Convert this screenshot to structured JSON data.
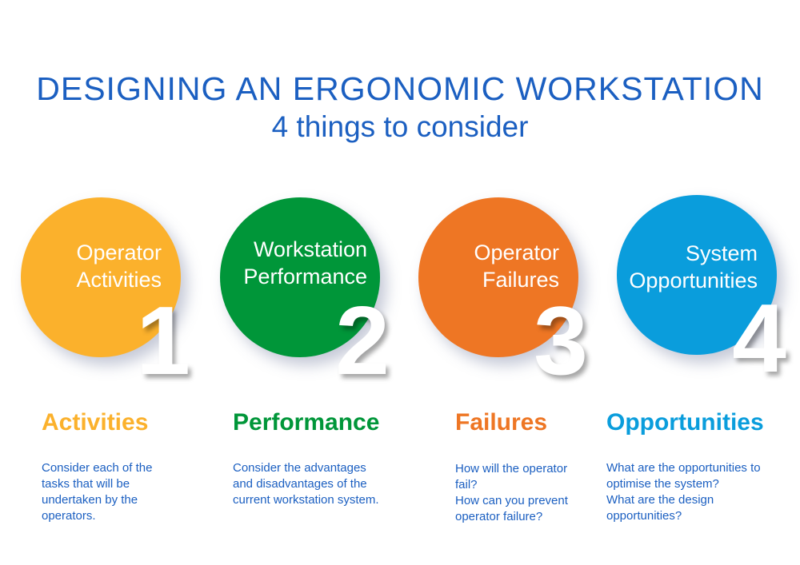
{
  "title": "DESIGNING AN ERGONOMIC WORKSTATION",
  "subtitle": "4 things to consider",
  "items": [
    {
      "number": "1",
      "circle_line1": "Operator",
      "circle_line2": "Activities",
      "heading": "Activities",
      "body": "Consider each of the\ntasks that will be\nundertaken by the\noperators.",
      "color": "#fbb12c"
    },
    {
      "number": "2",
      "circle_line1": "Workstation",
      "circle_line2": "Performance",
      "heading": "Performance",
      "body": "Consider the  advantages\nand disadvantages of the\ncurrent workstation system.",
      "color": "#009639"
    },
    {
      "number": "3",
      "circle_line1": "Operator",
      "circle_line2": "Failures",
      "heading": "Failures",
      "body": "How will the operator\nfail?\nHow can you prevent\noperator  failure?",
      "color": "#ee7624"
    },
    {
      "number": "4",
      "circle_line1": "System",
      "circle_line2": "Opportunities",
      "heading": "Opportunities",
      "body": "What are the opportunities to\noptimise the system?\nWhat are the design\nopportunities?",
      "color": "#0a9ddc"
    }
  ]
}
